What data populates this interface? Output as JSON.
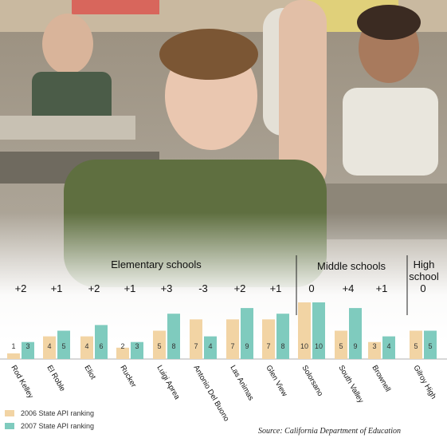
{
  "colors": {
    "y2006": "#f2d4a4",
    "y2007": "#7fcbbe",
    "divider": "#222222",
    "text": "#111111"
  },
  "groups": [
    {
      "label": "Elementary schools",
      "from": 0,
      "to": 7
    },
    {
      "label": "Middle schools",
      "from": 8,
      "to": 10
    },
    {
      "label": "High\nschool",
      "from": 11,
      "to": 11
    }
  ],
  "chart_data": {
    "type": "bar",
    "categories": [
      "Rod Kelley",
      "El Roble",
      "Eliot",
      "Rucker",
      "Luigi Aprea",
      "Antonio Del Buono",
      "Las Animas",
      "Glen View",
      "Solorsano",
      "South Valley",
      "Brownell",
      "Gilroy High"
    ],
    "series": [
      {
        "name": "2006 State API ranking",
        "values": [
          1,
          4,
          4,
          2,
          5,
          7,
          7,
          7,
          10,
          5,
          3,
          5
        ]
      },
      {
        "name": "2007 State API ranking",
        "values": [
          3,
          5,
          6,
          3,
          8,
          4,
          9,
          8,
          10,
          9,
          4,
          5
        ]
      }
    ],
    "changes": [
      "+2",
      "+1",
      "+2",
      "+1",
      "+3",
      "-3",
      "+2",
      "+1",
      "0",
      "+4",
      "+1",
      "0"
    ],
    "ylim": [
      0,
      10
    ]
  },
  "source": "Source: California Department of Education"
}
